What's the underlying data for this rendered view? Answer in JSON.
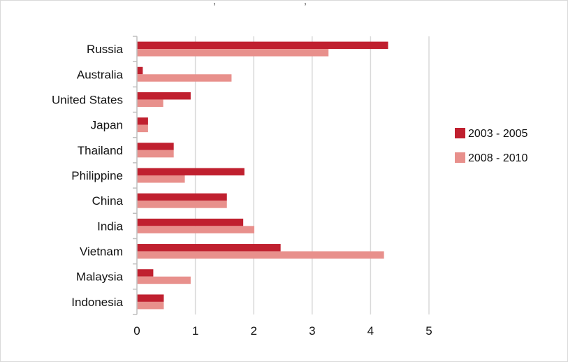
{
  "chart_data": {
    "type": "bar",
    "orientation": "horizontal",
    "title": "",
    "xlabel": "",
    "ylabel": "",
    "categories": [
      "Russia",
      "Australia",
      "United States",
      "Japan",
      "Thailand",
      "Philippine",
      "China",
      "India",
      "Vietnam",
      "Malaysia",
      "Indonesia"
    ],
    "series": [
      {
        "name": "2003 - 2005",
        "color": "#c0202f",
        "values": [
          4.3,
          0.1,
          0.92,
          0.19,
          0.63,
          1.84,
          1.54,
          1.82,
          2.46,
          0.28,
          0.46
        ]
      },
      {
        "name": "2008 - 2010",
        "color": "#e8908c",
        "values": [
          3.28,
          1.62,
          0.45,
          0.19,
          0.63,
          0.82,
          1.54,
          2.01,
          4.23,
          0.92,
          0.46
        ]
      }
    ],
    "xlim": [
      0,
      5
    ],
    "xticks": [
      "0",
      "1",
      "2",
      "3",
      "4",
      "5"
    ],
    "grid": true,
    "legend_position": "right"
  }
}
